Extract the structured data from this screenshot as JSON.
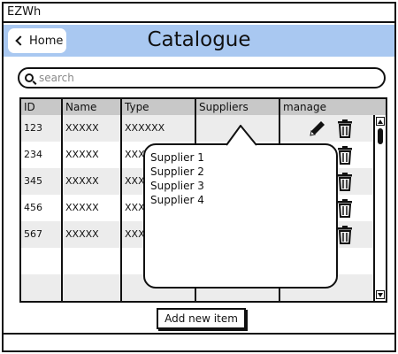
{
  "window": {
    "title": "EZWh"
  },
  "header": {
    "home_label": "Home",
    "page_title": "Catalogue"
  },
  "search": {
    "placeholder": "search",
    "value": ""
  },
  "table": {
    "columns": [
      "ID",
      "Name",
      "Type",
      "Suppliers",
      "manage"
    ],
    "rows": [
      {
        "id": "123",
        "name": "XXXXX",
        "type": "XXXXXX"
      },
      {
        "id": "234",
        "name": "XXXXX",
        "type": "XXX"
      },
      {
        "id": "345",
        "name": "XXXXX",
        "type": "XXX"
      },
      {
        "id": "456",
        "name": "XXXXX",
        "type": "XXX"
      },
      {
        "id": "567",
        "name": "XXXXX",
        "type": "XXX"
      }
    ]
  },
  "suppliers_popover": {
    "items": [
      "Supplier 1",
      "Supplier 2",
      "Supplier 3",
      "Supplier 4"
    ]
  },
  "actions": {
    "add_label": "Add new item"
  },
  "colors": {
    "header_bg": "#a9c8f1",
    "table_head_bg": "#c8c8c8",
    "row_alt_bg": "#ececec"
  }
}
